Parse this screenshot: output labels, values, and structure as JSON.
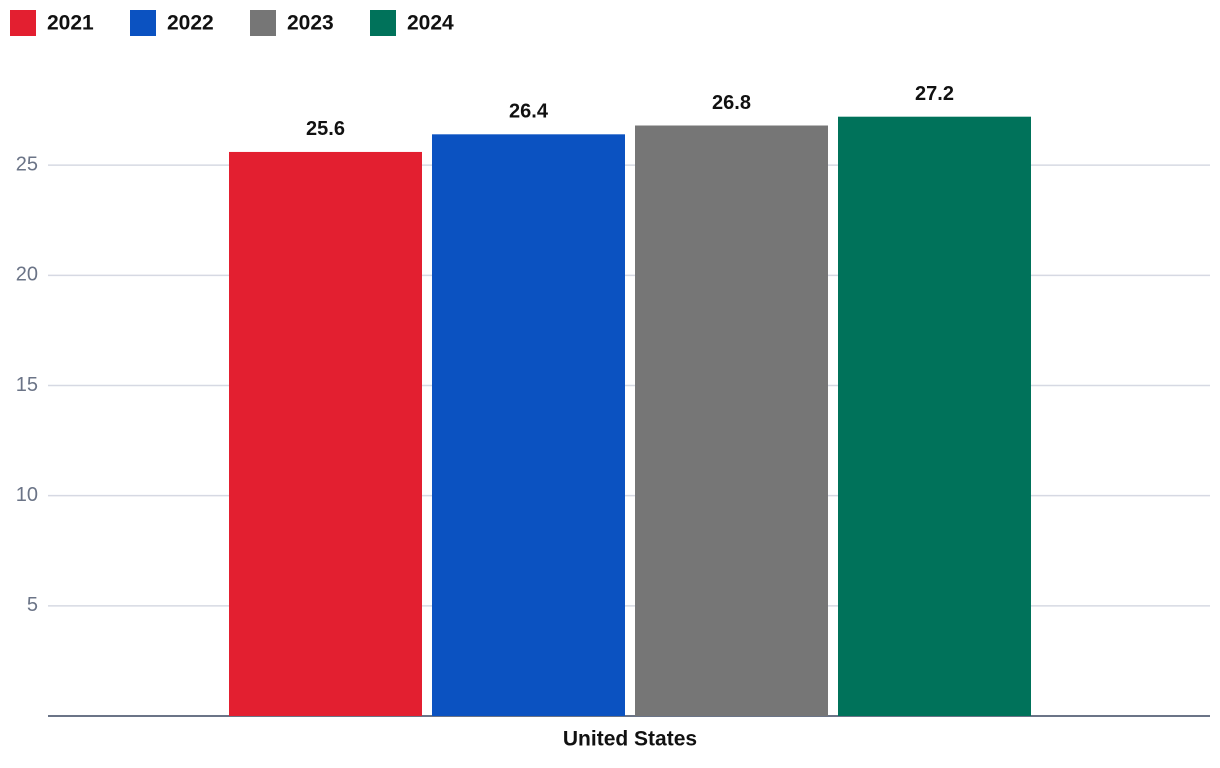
{
  "chart_data": {
    "type": "bar",
    "categories": [
      "United States"
    ],
    "series": [
      {
        "name": "2021",
        "color": "#e31f30",
        "values": [
          25.6
        ]
      },
      {
        "name": "2022",
        "color": "#0b52c1",
        "values": [
          26.4
        ]
      },
      {
        "name": "2023",
        "color": "#767676",
        "values": [
          26.8
        ]
      },
      {
        "name": "2024",
        "color": "#00725a",
        "values": [
          27.2
        ]
      }
    ],
    "ylim": [
      0,
      30
    ],
    "yticks": [
      5,
      10,
      15,
      20,
      25
    ],
    "grid": true,
    "legend": "top-left"
  }
}
